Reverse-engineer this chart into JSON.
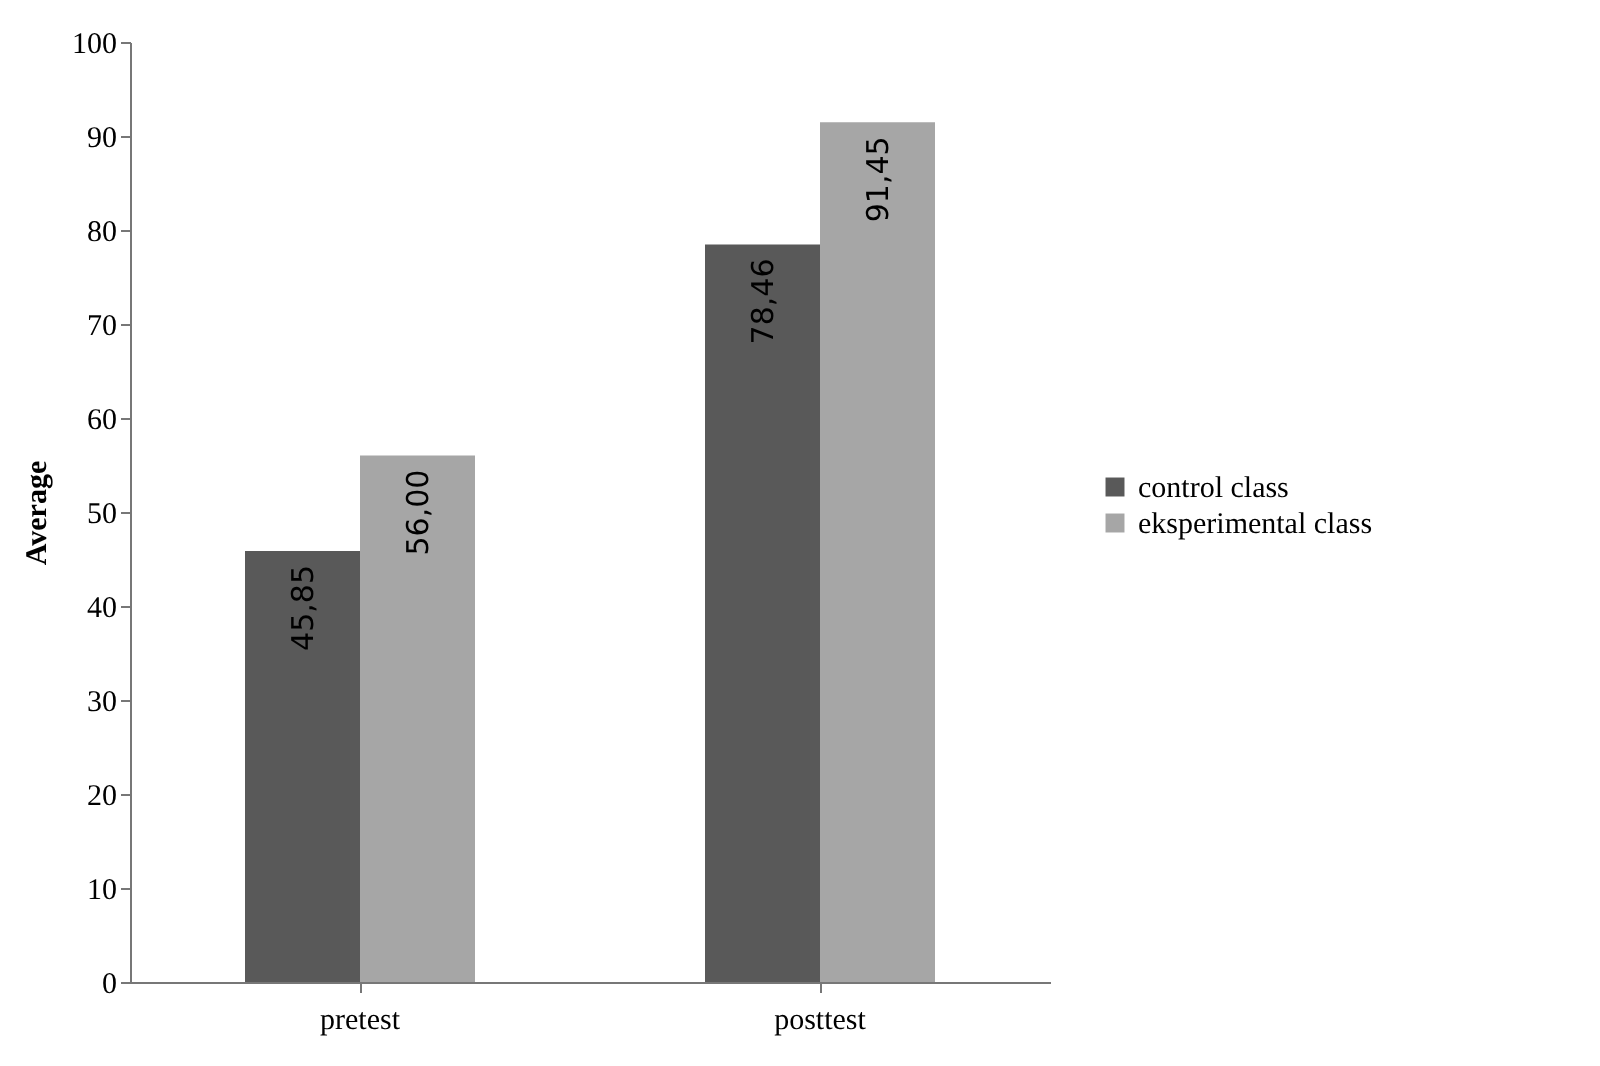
{
  "chart_data": {
    "type": "bar",
    "ylabel": "Average",
    "categories": [
      "pretest",
      "posttest"
    ],
    "series": [
      {
        "name": "control class",
        "color": "#595959",
        "values": [
          45.85,
          78.46
        ],
        "value_labels": [
          "45,85",
          "78,46"
        ]
      },
      {
        "name": "eksperimental class",
        "color": "#a6a6a6",
        "values": [
          56.0,
          91.45
        ],
        "value_labels": [
          "56,00",
          "91,45"
        ]
      }
    ],
    "ylim": [
      0,
      100
    ],
    "yticks": [
      0,
      10,
      20,
      30,
      40,
      50,
      60,
      70,
      80,
      90,
      100
    ],
    "grid": false,
    "legend": "right"
  }
}
